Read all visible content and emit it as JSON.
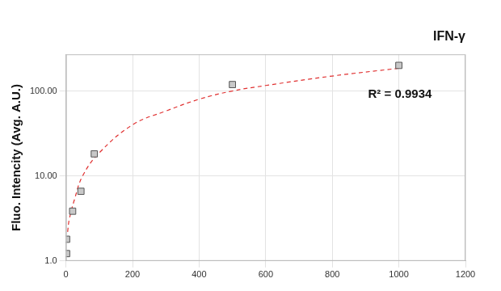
{
  "chart_data": {
    "type": "scatter",
    "title": "IFN-γ",
    "y_label": "Fluo. Intencity (Avg. A.U.)",
    "annotation": "R² = 0.9934",
    "log": "y",
    "grid": true,
    "xlim": [
      0,
      1200
    ],
    "xticks": [
      0,
      200,
      400,
      600,
      800,
      1000,
      1200
    ],
    "ylim": [
      1,
      270
    ],
    "yticks": [
      {
        "value": 1,
        "label": "1.0"
      },
      {
        "value": 10,
        "label": "10.00"
      },
      {
        "value": 100,
        "label": "100.00"
      }
    ],
    "series": [
      {
        "type": "scatter",
        "color": "#c8c8c8",
        "marker": "square",
        "x": [
          2,
          2,
          20,
          45,
          85,
          500,
          1000
        ],
        "values": [
          1.22,
          1.8,
          3.85,
          6.6,
          18.2,
          119,
          200
        ]
      },
      {
        "type": "line",
        "color": "#e03030",
        "line_style": "dashed",
        "x": [
          5,
          10,
          25,
          50,
          100,
          200,
          300,
          400,
          500,
          600,
          800,
          1000
        ],
        "values": [
          2.2,
          3.1,
          5.2,
          10,
          18.7,
          40,
          58,
          80,
          100,
          116,
          150,
          185
        ]
      }
    ]
  }
}
